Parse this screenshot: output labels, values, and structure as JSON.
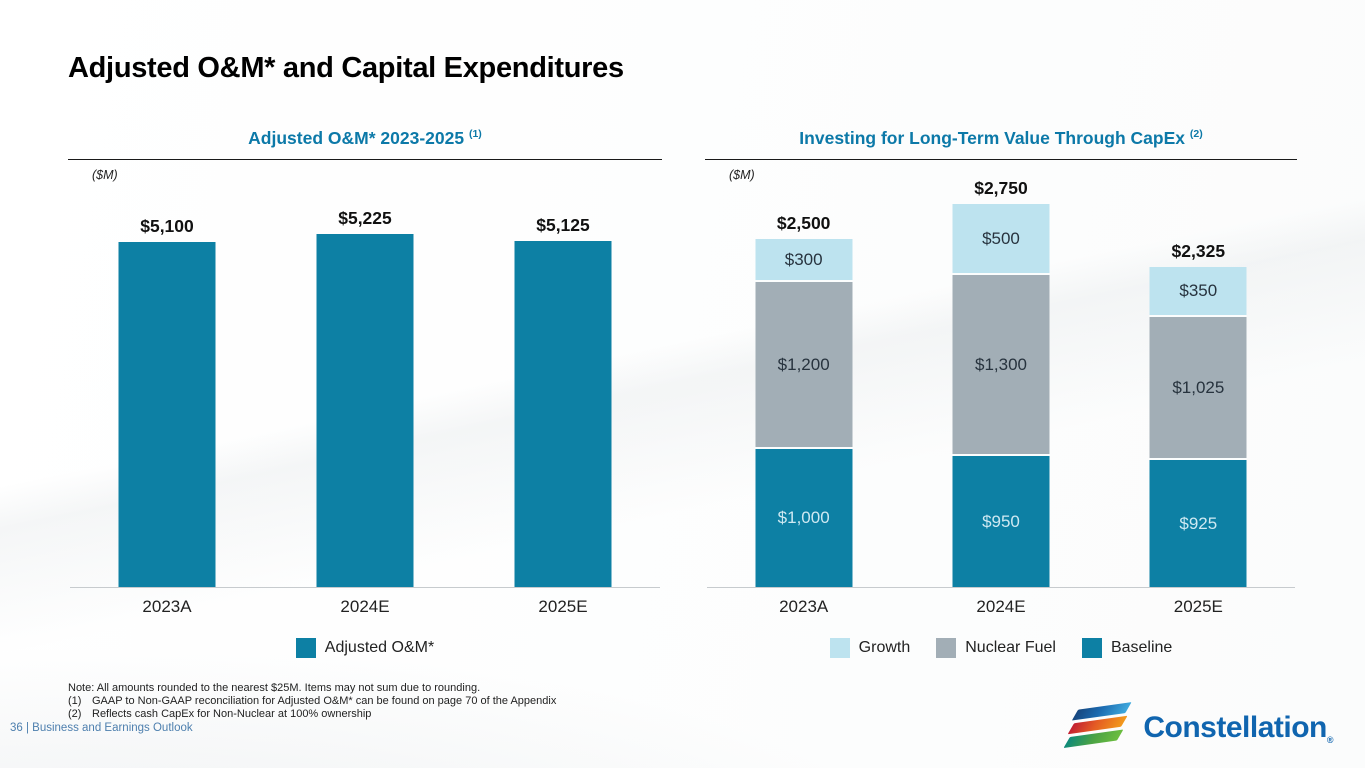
{
  "slide": {
    "title": "Adjusted O&M* and Capital Expenditures",
    "notes": {
      "line1": "Note: All amounts rounded to the nearest $25M. Items may not sum due to rounding.",
      "fn1_marker": "(1)",
      "fn1_text": "GAAP to Non-GAAP reconciliation for Adjusted O&M* can be found on page 70 of the Appendix",
      "fn2_marker": "(2)",
      "fn2_text": "Reflects cash CapEx for Non-Nuclear at 100% ownership"
    },
    "footer": {
      "page_label": "36 | Business and Earnings Outlook"
    }
  },
  "colors": {
    "baseline_teal": "#0d80a4",
    "growth_light_blue": "#bde3ef",
    "nuclear_fuel_gray": "#a2aeb6",
    "chart_title_blue": "#0c79a8",
    "footer_blue": "#4d7fae",
    "logo_blue": "#1065af"
  },
  "chart_data": [
    {
      "type": "bar",
      "stacked": false,
      "title": "Adjusted O&M* 2023-2025",
      "title_sup": "(1)",
      "units_label": "($M)",
      "xlabel": "",
      "ylabel": "($M)",
      "ylim": [
        0,
        5750
      ],
      "grid": false,
      "legend_position": "bottom",
      "categories": [
        "2023A",
        "2024E",
        "2025E"
      ],
      "values": [
        5100,
        5225,
        5125
      ],
      "total_labels": [
        "$5,100",
        "$5,225",
        "$5,125"
      ],
      "series": [
        {
          "name": "Adjusted O&M*",
          "color": "#0d80a4",
          "values": [
            5100,
            5225,
            5125
          ],
          "segment_labels": [
            "",
            "",
            ""
          ],
          "label_color": "#ffffff"
        }
      ],
      "legend": [
        {
          "label": "Adjusted O&M*",
          "color": "#0d80a4"
        }
      ]
    },
    {
      "type": "bar",
      "stacked": true,
      "title": "Investing for Long-Term Value Through CapEx",
      "title_sup": "(2)",
      "units_label": "($M)",
      "xlabel": "",
      "ylabel": "($M)",
      "ylim": [
        0,
        2825
      ],
      "grid": false,
      "legend_position": "bottom",
      "categories": [
        "2023A",
        "2024E",
        "2025E"
      ],
      "totals": [
        2500,
        2750,
        2325
      ],
      "total_labels": [
        "$2,500",
        "$2,750",
        "$2,325"
      ],
      "series": [
        {
          "name": "Baseline",
          "color": "#0d80a4",
          "values": [
            1000,
            950,
            925
          ],
          "segment_labels": [
            "$1,000",
            "$950",
            "$925"
          ],
          "label_color": "#cfe9f2"
        },
        {
          "name": "Nuclear Fuel",
          "color": "#a2aeb6",
          "values": [
            1200,
            1300,
            1025
          ],
          "segment_labels": [
            "$1,200",
            "$1,300",
            "$1,025"
          ],
          "label_color": "#27333e"
        },
        {
          "name": "Growth",
          "color": "#bde3ef",
          "values": [
            300,
            500,
            350
          ],
          "segment_labels": [
            "$300",
            "$500",
            "$350"
          ],
          "label_color": "#27333e"
        }
      ],
      "legend": [
        {
          "label": "Growth",
          "color": "#bde3ef"
        },
        {
          "label": "Nuclear Fuel",
          "color": "#a2aeb6"
        },
        {
          "label": "Baseline",
          "color": "#0d80a4"
        }
      ]
    }
  ],
  "logo": {
    "brand": "Constellation",
    "registered_mark": "®"
  }
}
